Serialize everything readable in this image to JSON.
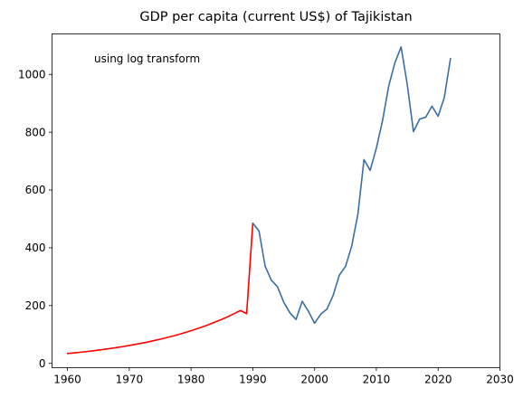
{
  "chart_data": {
    "type": "line",
    "title": "GDP per capita (current US$) of Tajikistan",
    "annotation": "using log transform",
    "xlabel": "",
    "ylabel": "",
    "xlim": [
      1957.5,
      2030
    ],
    "ylim": [
      -15,
      1140
    ],
    "x_ticks": [
      1960,
      1970,
      1980,
      1990,
      2000,
      2010,
      2020,
      2030
    ],
    "y_ticks": [
      0,
      200,
      400,
      600,
      800,
      1000
    ],
    "grid": false,
    "series": [
      {
        "color": "#ff0000",
        "x": [
          1960,
          1961,
          1962,
          1963,
          1964,
          1965,
          1966,
          1967,
          1968,
          1969,
          1970,
          1971,
          1972,
          1973,
          1974,
          1975,
          1976,
          1977,
          1978,
          1979,
          1980,
          1981,
          1982,
          1983,
          1984,
          1985,
          1986,
          1987,
          1988,
          1989,
          1990
        ],
        "y": [
          34,
          36,
          38.2,
          40.6,
          43.1,
          45.8,
          48.6,
          51.6,
          54.8,
          58.2,
          61.8,
          65.7,
          69.7,
          74.1,
          78.7,
          83.5,
          88.7,
          94.2,
          100.1,
          106.3,
          112.9,
          119.9,
          127.4,
          135.3,
          143.7,
          152.6,
          162.1,
          172.2,
          182.9,
          172,
          485
        ]
      },
      {
        "color": "#3a6ea5",
        "x": [
          1990,
          1991,
          1992,
          1993,
          1994,
          1995,
          1996,
          1997,
          1998,
          1999,
          2000,
          2001,
          2002,
          2003,
          2004,
          2005,
          2006,
          2007,
          2008,
          2009,
          2010,
          2011,
          2012,
          2013,
          2014,
          2015,
          2016,
          2017,
          2018,
          2019,
          2020,
          2021,
          2022
        ],
        "y": [
          485,
          458,
          336,
          288,
          265,
          212,
          175,
          152,
          215,
          180,
          139,
          170,
          188,
          235,
          305,
          335,
          405,
          515,
          705,
          668,
          745,
          840,
          960,
          1040,
          1095,
          965,
          802,
          845,
          852,
          890,
          855,
          920,
          1055
        ]
      }
    ]
  }
}
